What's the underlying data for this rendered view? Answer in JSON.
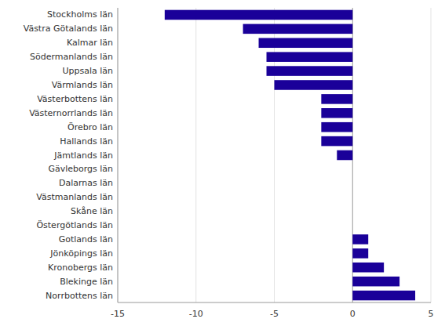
{
  "chart_data": {
    "type": "bar",
    "orientation": "horizontal",
    "categories": [
      "Stockholms län",
      "Västra Götalands län",
      "Kalmar län",
      "Södermanlands län",
      "Uppsala län",
      "Värmlands län",
      "Västerbottens län",
      "Västernorrlands län",
      "Örebro län",
      "Hallands län",
      "Jämtlands län",
      "Gävleborgs län",
      "Dalarnas län",
      "Västmanlands län",
      "Skåne län",
      "Östergötlands län",
      "Gotlands län",
      "Jönköpings län",
      "Kronobergs län",
      "Blekinge län",
      "Norrbottens län"
    ],
    "values": [
      -12,
      -7,
      -6,
      -5.5,
      -5.5,
      -5,
      -2,
      -2,
      -2,
      -2,
      -1,
      0,
      0,
      0,
      0,
      0,
      1,
      1,
      2,
      3,
      4
    ],
    "color": "#1a0099",
    "xlim": [
      -15,
      5
    ],
    "xticks": [
      -15,
      -10,
      -5,
      0,
      5
    ],
    "grid": true
  }
}
